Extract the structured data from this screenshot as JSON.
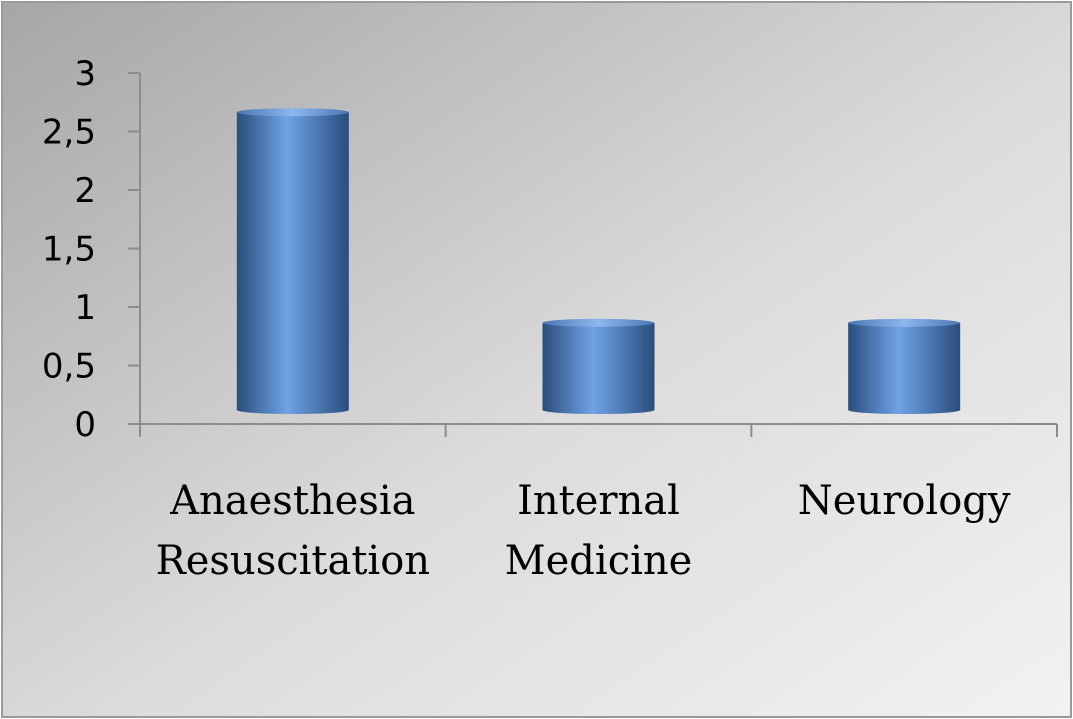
{
  "chart_data": {
    "type": "bar",
    "style": "3d-cylinder",
    "categories": [
      [
        "Anaesthesia",
        "Resuscitation"
      ],
      [
        "Internal",
        "Medicine"
      ],
      [
        "Neurology"
      ]
    ],
    "values": [
      2.75,
      0.95,
      0.95
    ],
    "ylim": [
      0,
      3
    ],
    "y_ticks": [
      "0",
      "0,5",
      "1",
      "1,5",
      "2",
      "2,5",
      "3"
    ],
    "y_tick_values": [
      0,
      0.5,
      1,
      1.5,
      2,
      2.5,
      3
    ],
    "title": "",
    "xlabel": "",
    "ylabel": "",
    "grid": false,
    "legend": "none",
    "colors": {
      "bar_light": "#6fa3e6",
      "bar_mid": "#4f81bd",
      "bar_dark": "#2a4d7c",
      "background_light": "#f2f2f2",
      "background_dark": "#a6a6a6",
      "axis": "#8c8c8c"
    }
  }
}
